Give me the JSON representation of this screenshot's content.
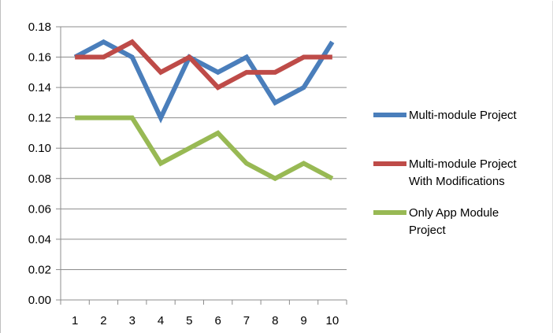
{
  "chart_data": {
    "type": "line",
    "title": "",
    "xlabel": "",
    "ylabel": "",
    "categories": [
      "1",
      "2",
      "3",
      "4",
      "5",
      "6",
      "7",
      "8",
      "9",
      "10"
    ],
    "ylim": [
      0,
      0.18
    ],
    "yticks": [
      "0.00",
      "0.02",
      "0.04",
      "0.06",
      "0.08",
      "0.10",
      "0.12",
      "0.14",
      "0.16",
      "0.18"
    ],
    "grid": "horizontal",
    "legend_position": "right",
    "series": [
      {
        "name": "Multi-module Project",
        "legend_lines": [
          "Multi-module Project"
        ],
        "color": "#4a7ebb",
        "values": [
          0.16,
          0.17,
          0.16,
          0.12,
          0.16,
          0.15,
          0.16,
          0.13,
          0.14,
          0.17
        ]
      },
      {
        "name": "Multi-module Project With Modifications",
        "legend_lines": [
          "Multi-module Project",
          "With Modifications"
        ],
        "color": "#be4b48",
        "values": [
          0.16,
          0.16,
          0.17,
          0.15,
          0.16,
          0.14,
          0.15,
          0.15,
          0.16,
          0.16
        ]
      },
      {
        "name": "Only App Module Project",
        "legend_lines": [
          "Only App Module",
          "Project"
        ],
        "color": "#98b954",
        "values": [
          0.12,
          0.12,
          0.12,
          0.09,
          0.1,
          0.11,
          0.09,
          0.08,
          0.09,
          0.08
        ]
      }
    ]
  }
}
